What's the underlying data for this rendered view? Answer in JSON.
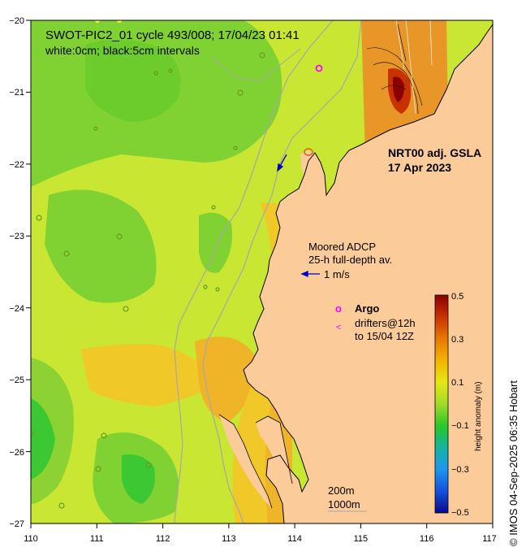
{
  "map": {
    "title_line1": "SWOT-PIC2_01 cycle 493/008; 17/04/23 01:41",
    "title_line2": "white:0cm; black:5cm intervals",
    "product_line1": "NRT00 adj. GSLA",
    "product_line2": "17 Apr 2023",
    "adcp_line1": "Moored ADCP",
    "adcp_line2": "25-h full-depth av.",
    "adcp_scale": "1 m/s",
    "argo_symbol": "o",
    "argo_label": "Argo",
    "drifter_symbol": "<",
    "drifter_line1": "drifters@12h",
    "drifter_line2": "to 15/04 12Z",
    "isobath_1": "200m",
    "isobath_2": "1000m",
    "credit": "© IMOS 04-Sep-2025 06:35 Hobart",
    "x_ticks": [
      "110",
      "111",
      "112",
      "113",
      "114",
      "115",
      "116",
      "117"
    ],
    "y_ticks": [
      "−20",
      "−21",
      "−22",
      "−23",
      "−24",
      "−25",
      "−26",
      "−27"
    ],
    "colorbar": {
      "label": "height anomaly (m)",
      "ticks": [
        "0.5",
        "0.3",
        "0.1",
        "−0.1",
        "−0.3",
        "−0.5"
      ],
      "colors": [
        "#8b0000",
        "#c83200",
        "#e87800",
        "#f5b400",
        "#e6e614",
        "#a0dc28",
        "#28c828",
        "#14b4a0",
        "#1e96f0",
        "#1450dc",
        "#0a0a8c"
      ]
    },
    "colors": {
      "land": "#fccb9a",
      "ocean_base": "#c8e632",
      "green": "#80d232",
      "orange": "#f0b428",
      "isobath": "#a8a8a8"
    }
  }
}
